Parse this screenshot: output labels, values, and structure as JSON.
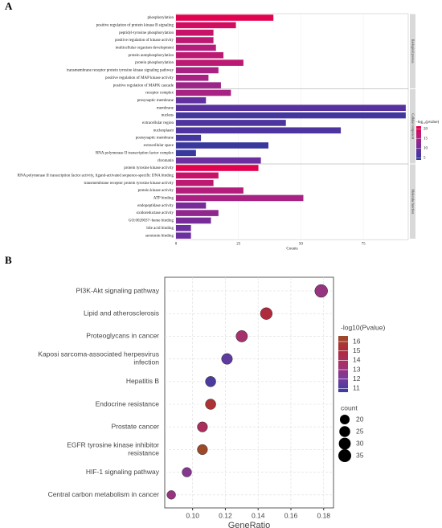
{
  "chart_data": [
    {
      "type": "hbar",
      "panel_label": "A",
      "x_label": "Counts",
      "xlim": [
        0,
        93
      ],
      "xticks": [
        0,
        25,
        50,
        75
      ],
      "panels": [
        {
          "label": "Biological process",
          "categories": [
            "phosphorylation",
            "positive regulation of protein kinase B signaling",
            "peptidyl-tyrosine phosphorylation",
            "positive regulation of kinase activity",
            "multicellular organism development",
            "protein autophosphorylation",
            "protein phosphorylation",
            "transmembrane receptor protein tyrosine kinase signaling pathway",
            "positive regulation of MAP kinase activity",
            "positive regulation of MAPK cascade"
          ],
          "values": [
            39,
            24,
            15,
            15,
            16,
            19,
            27,
            17,
            13,
            18
          ],
          "color_values": [
            21,
            19,
            18,
            17,
            16,
            17,
            17,
            15,
            15,
            14
          ]
        },
        {
          "label": "Cellular component",
          "categories": [
            "receptor complex",
            "presynaptic membrane",
            "membrane",
            "nucleus",
            "extracellular region",
            "nucleoplasm",
            "postsynaptic membrane",
            "extracellular space",
            "RNA polymerase II transcription factor complex",
            "chromatin"
          ],
          "values": [
            22,
            12,
            92,
            92,
            44,
            66,
            10,
            37,
            8,
            34
          ],
          "color_values": [
            15,
            9,
            8,
            6,
            7,
            7,
            6,
            5,
            5,
            10
          ]
        },
        {
          "label": "Molecular function",
          "categories": [
            "protein tyrosine kinase activity",
            "RNA polymerase II transcription factor activity, ligand-activated sequence-specific DNA binding",
            "transmembrane receptor protein tyrosine kinase activity",
            "protein kinase activity",
            "ATP binding",
            "endopeptidase activity",
            "oxidoreductase activity",
            "GO:0020037~heme binding",
            "bile acid binding",
            "serotonin binding"
          ],
          "values": [
            33,
            17,
            15,
            27,
            51,
            12,
            17,
            14,
            6,
            6
          ],
          "color_values": [
            21,
            18,
            17,
            16,
            15,
            11,
            13,
            11,
            10,
            10
          ]
        }
      ],
      "colorbar": {
        "title": "-log₁₀(pvalue)",
        "range": [
          4,
          21.5
        ],
        "ticks": [
          5,
          10,
          15,
          20
        ],
        "colors": [
          "#2e3a9c",
          "#6a2fa0",
          "#b0207f",
          "#e6004a"
        ]
      }
    },
    {
      "type": "dot",
      "panel_label": "B",
      "x_label": "GeneRatio",
      "xlim": [
        0.083,
        0.186
      ],
      "xticks": [
        {
          "value": 0.1,
          "label": "0.10"
        },
        0.12,
        0.14,
        0.16,
        0.18
      ],
      "categories": [
        "PI3K-Akt signaling pathway",
        "Lipid and atherosclerosis",
        "Proteoglycans in cancer",
        "Kaposi sarcoma-associated herpesvirus\ninfection",
        "Hepatitis B",
        "Endocrine resistance",
        "Prostate cancer",
        "EGFR tyrosine kinase inhibitor\nresistance",
        "HIF-1 signaling pathway",
        "Central carbon metabolism in cancer"
      ],
      "values": [
        0.1785,
        0.145,
        0.13,
        0.121,
        0.111,
        0.111,
        0.106,
        0.106,
        0.0965,
        0.087
      ],
      "sizes": [
        35,
        30,
        28,
        25,
        23,
        23,
        22,
        22,
        19,
        16
      ],
      "color_values": [
        13,
        15,
        13.5,
        11.5,
        11,
        15.5,
        14,
        16.5,
        12.5,
        13
      ],
      "colorbar": {
        "title": "-log10(Pvalue)",
        "range": [
          10.6,
          16.6
        ],
        "ticks": [
          16,
          15,
          14,
          13,
          12,
          11
        ],
        "colors": [
          "#3a3ca0",
          "#7a3a9e",
          "#a8306a",
          "#b02a3a",
          "#9c4a28"
        ]
      },
      "size_legend": {
        "title": "count",
        "ticks": [
          20,
          25,
          30,
          35
        ]
      }
    }
  ]
}
